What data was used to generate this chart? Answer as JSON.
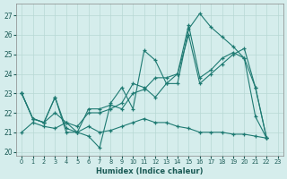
{
  "xlabel": "Humidex (Indice chaleur)",
  "bg_color": "#d5edec",
  "line_color": "#1e7a72",
  "grid_color": "#b8d8d5",
  "xlim": [
    -0.5,
    23.5
  ],
  "ylim": [
    19.8,
    27.6
  ],
  "xticks": [
    0,
    1,
    2,
    3,
    4,
    5,
    6,
    7,
    8,
    9,
    10,
    11,
    12,
    13,
    14,
    15,
    16,
    17,
    18,
    19,
    20,
    21,
    22,
    23
  ],
  "yticks": [
    20,
    21,
    22,
    23,
    24,
    25,
    26,
    27
  ],
  "series": [
    {
      "x": [
        0,
        1,
        2,
        3,
        4,
        5,
        6,
        7,
        8,
        9,
        10,
        11,
        12,
        13,
        14,
        15,
        16,
        17,
        18,
        19,
        20,
        21,
        22
      ],
      "y": [
        23.0,
        21.7,
        21.5,
        22.8,
        21.2,
        21.0,
        20.8,
        20.2,
        22.5,
        23.3,
        22.2,
        25.2,
        24.7,
        23.5,
        23.5,
        26.3,
        27.1,
        26.4,
        25.9,
        25.4,
        24.8,
        21.8,
        20.7
      ]
    },
    {
      "x": [
        0,
        1,
        2,
        3,
        4,
        5,
        6,
        7,
        8,
        9,
        10,
        11,
        12,
        13,
        14,
        15,
        16,
        17,
        18,
        19,
        20,
        21,
        22
      ],
      "y": [
        23.0,
        21.7,
        21.5,
        22.8,
        21.0,
        21.0,
        22.2,
        22.2,
        22.4,
        22.2,
        23.0,
        23.2,
        23.8,
        23.8,
        24.0,
        26.5,
        23.8,
        24.2,
        24.8,
        25.1,
        24.8,
        23.3,
        20.7
      ]
    },
    {
      "x": [
        0,
        1,
        2,
        3,
        4,
        5,
        6,
        7,
        8,
        9,
        10,
        11,
        12,
        13,
        14,
        15,
        16,
        17,
        18,
        19,
        20,
        21,
        22
      ],
      "y": [
        23.0,
        21.7,
        21.5,
        22.0,
        21.5,
        21.3,
        22.0,
        22.0,
        22.2,
        22.5,
        23.5,
        23.3,
        22.8,
        23.5,
        24.0,
        26.0,
        23.5,
        24.0,
        24.5,
        25.0,
        25.3,
        23.3,
        20.7
      ]
    },
    {
      "x": [
        0,
        1,
        2,
        3,
        4,
        5,
        6,
        7,
        8,
        9,
        10,
        11,
        12,
        13,
        14,
        15,
        16,
        17,
        18,
        19,
        20,
        21,
        22
      ],
      "y": [
        21.0,
        21.5,
        21.3,
        21.2,
        21.5,
        21.0,
        21.3,
        21.0,
        21.1,
        21.3,
        21.5,
        21.7,
        21.5,
        21.5,
        21.3,
        21.2,
        21.0,
        21.0,
        21.0,
        20.9,
        20.9,
        20.8,
        20.7
      ]
    }
  ]
}
